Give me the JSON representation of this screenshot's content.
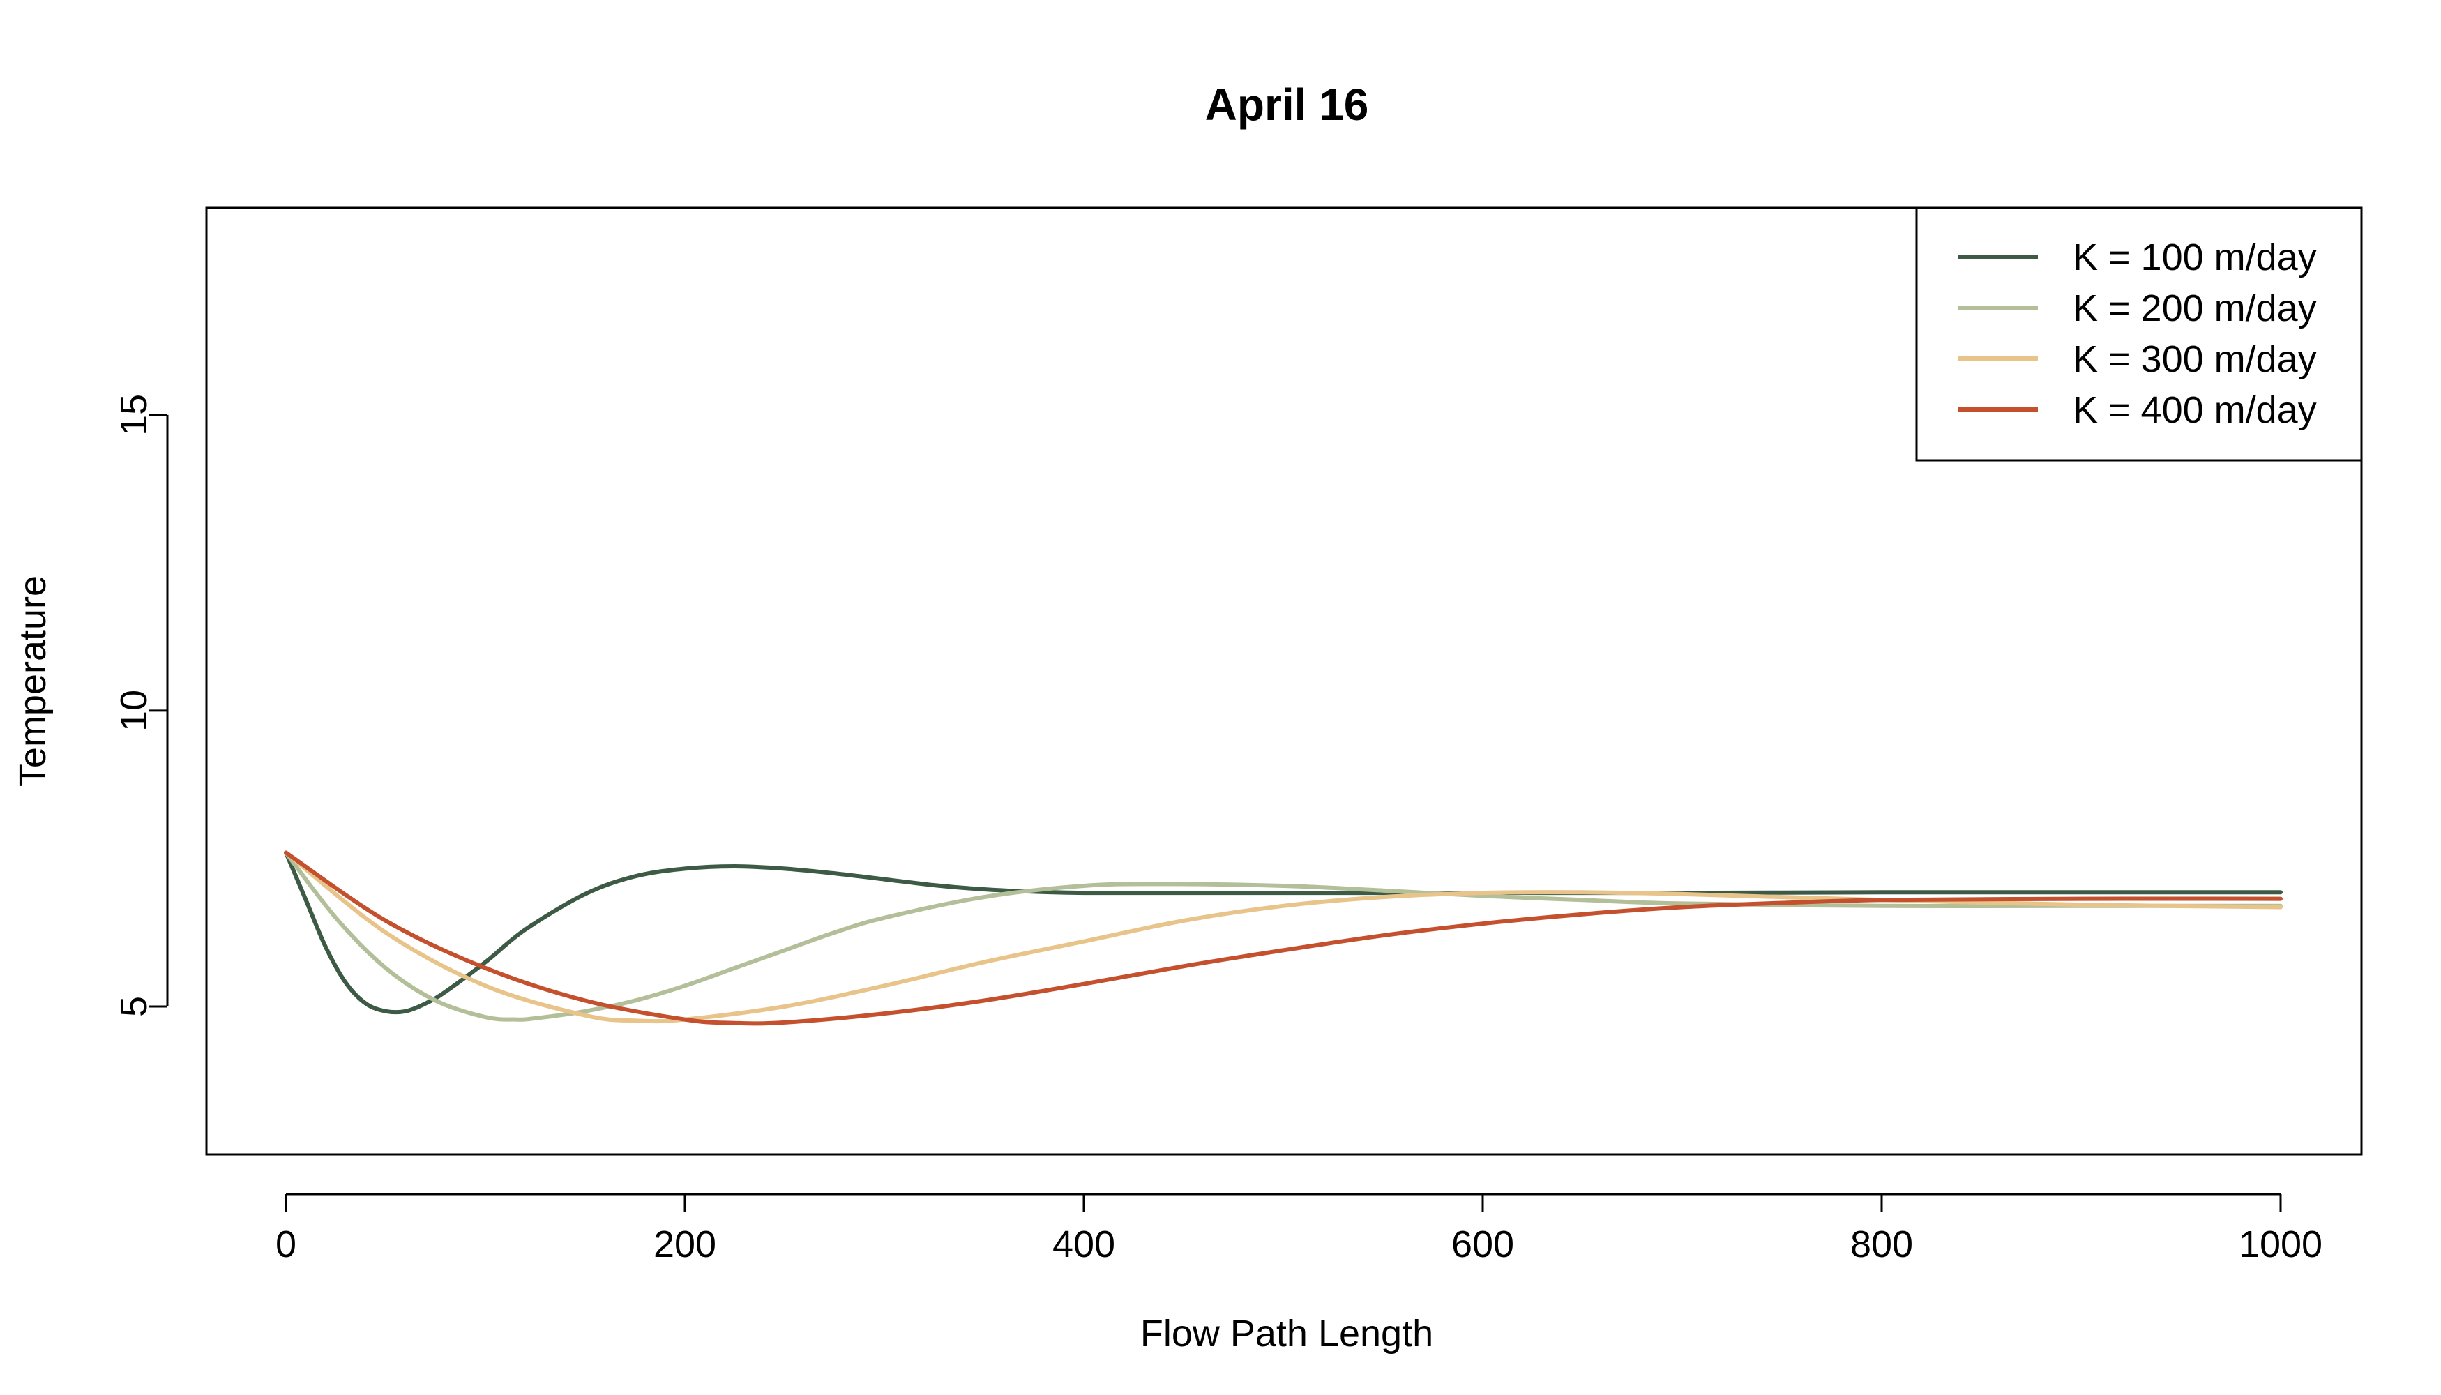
{
  "chart_data": {
    "type": "line",
    "title": "April 16",
    "xlabel": "Flow Path Length",
    "ylabel": "Temperature",
    "xlim": [
      0,
      1000
    ],
    "ylim": [
      2.5,
      18.5
    ],
    "x_ticks": [
      0,
      200,
      400,
      600,
      800,
      1000
    ],
    "y_ticks": [
      5,
      10,
      15
    ],
    "grid": false,
    "legend_position": "top-right",
    "series": [
      {
        "name": "K = 100 m/day",
        "color": "#3d5a45",
        "x": [
          0,
          10,
          20,
          30,
          40,
          50,
          60,
          70,
          80,
          100,
          120,
          150,
          175,
          200,
          225,
          250,
          275,
          300,
          325,
          350,
          375,
          400,
          450,
          500,
          600,
          700,
          800,
          900,
          1000
        ],
        "y": [
          7.6,
          6.8,
          6.0,
          5.4,
          5.05,
          4.92,
          4.92,
          5.05,
          5.25,
          5.75,
          6.3,
          6.9,
          7.2,
          7.33,
          7.37,
          7.33,
          7.25,
          7.15,
          7.05,
          6.98,
          6.94,
          6.92,
          6.92,
          6.92,
          6.92,
          6.92,
          6.93,
          6.93,
          6.93
        ]
      },
      {
        "name": "K = 200 m/day",
        "color": "#b3bf99",
        "x": [
          0,
          25,
          50,
          75,
          100,
          115,
          125,
          150,
          175,
          200,
          225,
          250,
          275,
          300,
          350,
          400,
          440,
          500,
          550,
          600,
          650,
          700,
          800,
          900,
          1000
        ],
        "y": [
          7.6,
          6.5,
          5.65,
          5.1,
          4.82,
          4.78,
          4.8,
          4.92,
          5.1,
          5.35,
          5.65,
          5.95,
          6.25,
          6.5,
          6.85,
          7.04,
          7.07,
          7.04,
          6.96,
          6.87,
          6.8,
          6.74,
          6.7,
          6.7,
          6.7
        ]
      },
      {
        "name": "K = 300 m/day",
        "color": "#e8c48a",
        "x": [
          0,
          50,
          100,
          150,
          175,
          200,
          250,
          300,
          350,
          400,
          450,
          500,
          550,
          600,
          650,
          700,
          800,
          900,
          1000
        ],
        "y": [
          7.6,
          6.25,
          5.35,
          4.85,
          4.76,
          4.78,
          5.0,
          5.35,
          5.75,
          6.1,
          6.45,
          6.7,
          6.85,
          6.92,
          6.93,
          6.9,
          6.8,
          6.72,
          6.68
        ]
      },
      {
        "name": "K = 400 m/day",
        "color": "#c4502e",
        "x": [
          0,
          50,
          100,
          150,
          200,
          225,
          250,
          300,
          350,
          400,
          450,
          500,
          550,
          600,
          650,
          700,
          750,
          800,
          900,
          1000
        ],
        "y": [
          7.6,
          6.45,
          5.65,
          5.1,
          4.78,
          4.72,
          4.73,
          4.88,
          5.1,
          5.38,
          5.68,
          5.95,
          6.2,
          6.4,
          6.56,
          6.68,
          6.75,
          6.8,
          6.82,
          6.82
        ]
      }
    ]
  }
}
